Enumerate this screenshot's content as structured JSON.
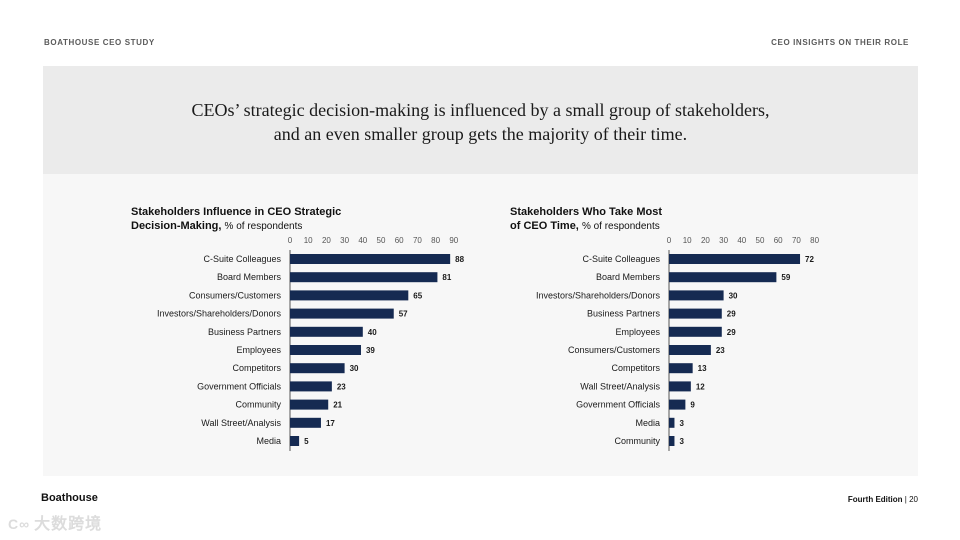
{
  "header": {
    "left": "BOATHOUSE CEO STUDY",
    "right": "CEO INSIGHTS ON THEIR ROLE"
  },
  "headline": {
    "line1": "CEOs’ strategic decision-making is influenced by a small group of stakeholders,",
    "line2": "and an even smaller group gets the majority of their time."
  },
  "colors": {
    "bar": "#152a52",
    "axis": "#555555",
    "panel": "#f7f7f7",
    "panel_top": "#ebebeb"
  },
  "chart_data": [
    {
      "type": "bar",
      "orientation": "horizontal",
      "title_line1": "Stakeholders Influence in CEO Strategic",
      "title_line2": "Decision-Making,",
      "unit": "% of respondents",
      "ticks": [
        0,
        10,
        20,
        30,
        40,
        50,
        60,
        70,
        80,
        90
      ],
      "xlim": [
        0,
        90
      ],
      "categories": [
        "C-Suite Colleagues",
        "Board Members",
        "Consumers/Customers",
        "Investors/Shareholders/Donors",
        "Business Partners",
        "Employees",
        "Competitors",
        "Government Officials",
        "Community",
        "Wall Street/Analysis",
        "Media"
      ],
      "values": [
        88,
        81,
        65,
        57,
        40,
        39,
        30,
        23,
        21,
        17,
        5
      ]
    },
    {
      "type": "bar",
      "orientation": "horizontal",
      "title_line1": "Stakeholders Who Take Most",
      "title_line2": "of CEO Time,",
      "unit": "% of respondents",
      "ticks": [
        0,
        10,
        20,
        30,
        40,
        50,
        60,
        70,
        80
      ],
      "xlim": [
        0,
        80
      ],
      "categories": [
        "C-Suite Colleagues",
        "Board Members",
        "Investors/Shareholders/Donors",
        "Business Partners",
        "Employees",
        "Consumers/Customers",
        "Competitors",
        "Wall Street/Analysis",
        "Government Officials",
        "Media",
        "Community"
      ],
      "values": [
        72,
        59,
        30,
        29,
        29,
        23,
        13,
        12,
        9,
        3,
        3
      ]
    }
  ],
  "footer": {
    "brand": "Boathouse",
    "edition": "Fourth Edition",
    "separator": "|",
    "page": "20"
  },
  "watermark": {
    "logo": "C∞",
    "text": "大数跨境"
  }
}
